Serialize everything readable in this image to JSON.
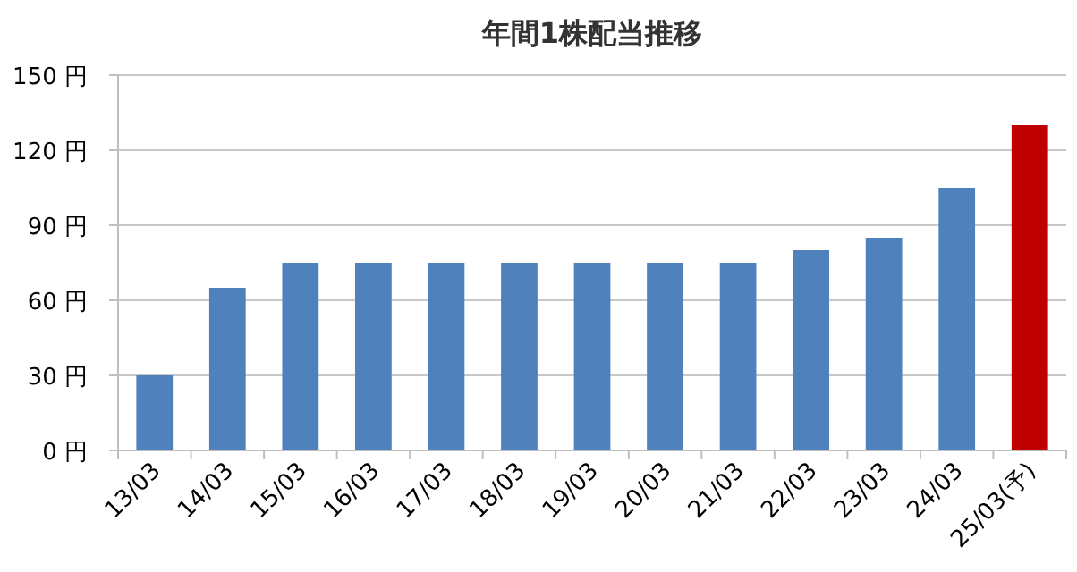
{
  "chart_data": {
    "type": "bar",
    "title": "年間1株配当推移",
    "categories": [
      "13/03",
      "14/03",
      "15/03",
      "16/03",
      "17/03",
      "18/03",
      "19/03",
      "20/03",
      "21/03",
      "22/03",
      "23/03",
      "24/03",
      "25/03(予)"
    ],
    "values": [
      30,
      65,
      75,
      75,
      75,
      75,
      75,
      75,
      75,
      80,
      85,
      105,
      130
    ],
    "colors": [
      "#4f81bd",
      "#4f81bd",
      "#4f81bd",
      "#4f81bd",
      "#4f81bd",
      "#4f81bd",
      "#4f81bd",
      "#4f81bd",
      "#4f81bd",
      "#4f81bd",
      "#4f81bd",
      "#4f81bd",
      "#c00000"
    ],
    "ylim": [
      0,
      150
    ],
    "yticks": [
      {
        "value": 0,
        "label": "0 円"
      },
      {
        "value": 30,
        "label": "30 円"
      },
      {
        "value": 60,
        "label": "60 円"
      },
      {
        "value": 90,
        "label": "90 円"
      },
      {
        "value": 120,
        "label": "120 円"
      },
      {
        "value": 150,
        "label": "150 円"
      }
    ],
    "grid": "y"
  }
}
